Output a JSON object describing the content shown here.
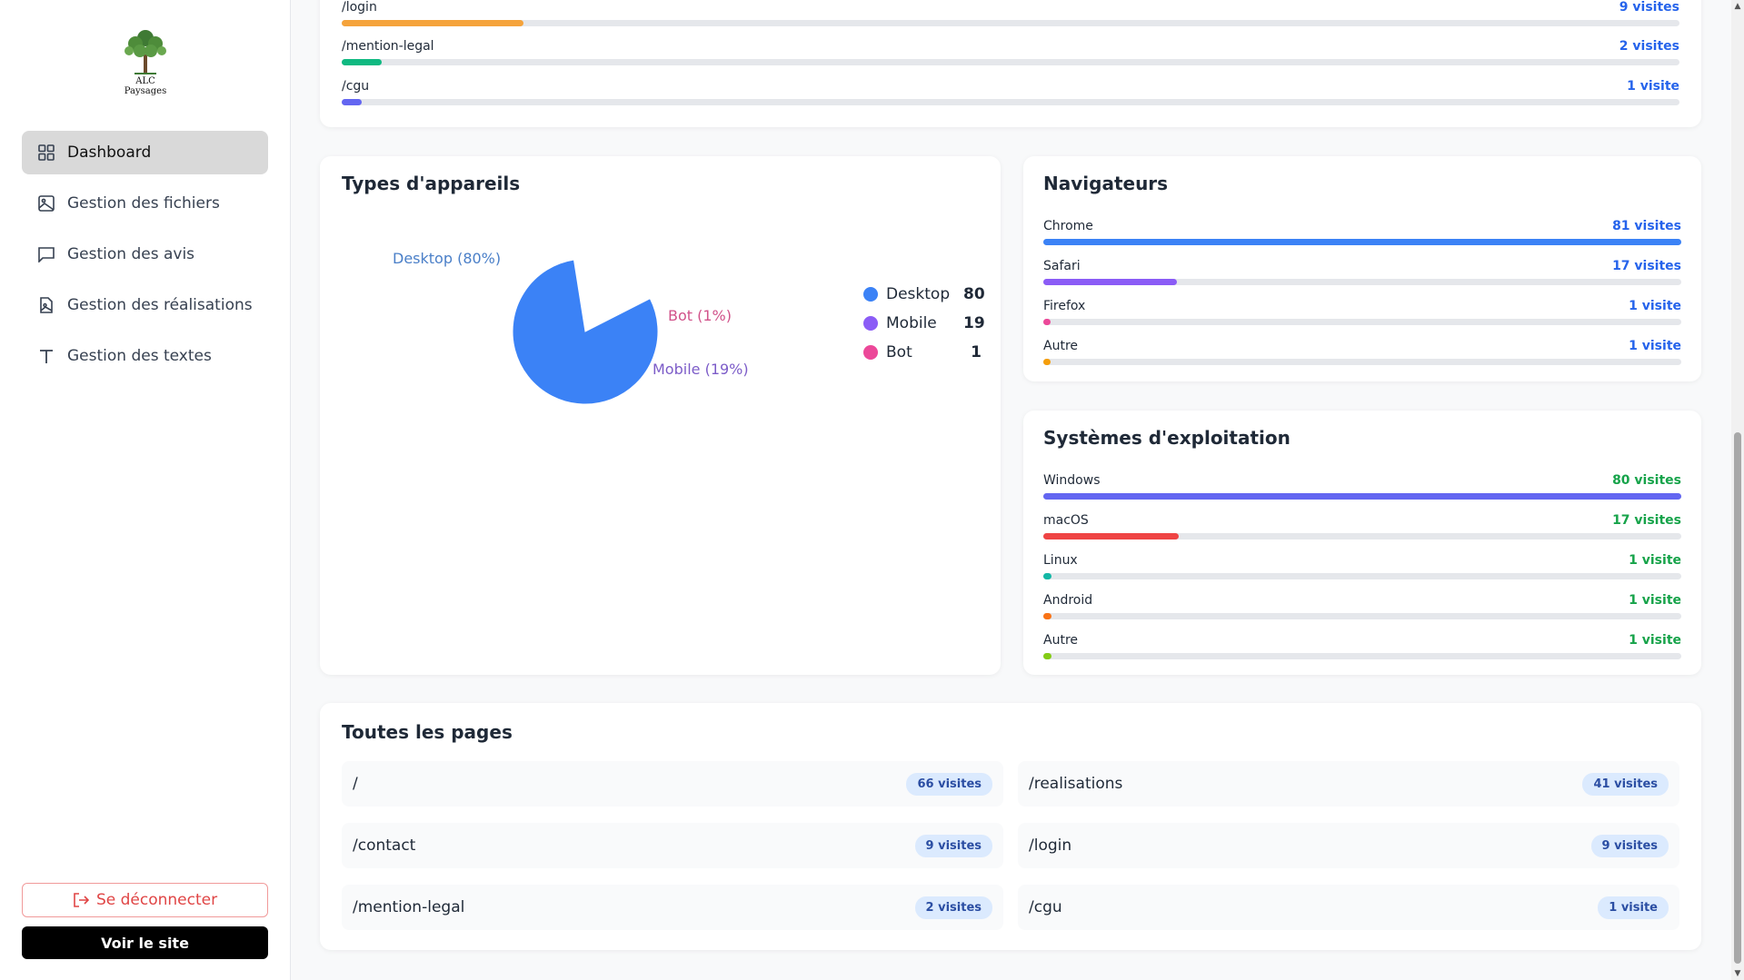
{
  "brand": {
    "name": "ALC Paysages"
  },
  "sidebar": {
    "items": [
      {
        "label": "Dashboard",
        "icon": "grid-icon",
        "active": true
      },
      {
        "label": "Gestion des fichiers",
        "icon": "image-icon"
      },
      {
        "label": "Gestion des avis",
        "icon": "message-icon"
      },
      {
        "label": "Gestion des réalisations",
        "icon": "file-image-icon"
      },
      {
        "label": "Gestion des textes",
        "icon": "type-icon"
      }
    ],
    "logout_label": "Se déconnecter",
    "view_site_label": "Voir le site"
  },
  "top_pages": [
    {
      "path": "/login",
      "count": "9 visites",
      "fraction": 0.136,
      "color": "#f5a33b"
    },
    {
      "path": "/mention-legal",
      "count": "2 visites",
      "fraction": 0.03,
      "color": "#10b981"
    },
    {
      "path": "/cgu",
      "count": "1 visite",
      "fraction": 0.015,
      "color": "#6366f1"
    }
  ],
  "devices": {
    "title": "Types d'appareils",
    "legend": [
      {
        "label": "Desktop",
        "value": "80",
        "color": "#3b82f6"
      },
      {
        "label": "Mobile",
        "value": "19",
        "color": "#8b5cf6"
      },
      {
        "label": "Bot",
        "value": "1",
        "color": "#ec4899"
      }
    ],
    "pie_labels": {
      "desktop": "Desktop (80%)",
      "bot": "Bot (1%)",
      "mobile": "Mobile (19%)"
    }
  },
  "chart_data": {
    "type": "pie",
    "categories": [
      "Desktop",
      "Mobile",
      "Bot"
    ],
    "values": [
      80,
      19,
      1
    ],
    "title": "Types d'appareils",
    "colors": [
      "#3b82f6",
      "#8b5cf6",
      "#ec4899"
    ]
  },
  "browsers": {
    "title": "Navigateurs",
    "items": [
      {
        "label": "Chrome",
        "count": "81 visites",
        "fraction": 1.0,
        "color": "#3b82f6"
      },
      {
        "label": "Safari",
        "count": "17 visites",
        "fraction": 0.21,
        "color": "#8b5cf6"
      },
      {
        "label": "Firefox",
        "count": "1 visite",
        "fraction": 0.012,
        "color": "#ec4899"
      },
      {
        "label": "Autre",
        "count": "1 visite",
        "fraction": 0.012,
        "color": "#f59e0b"
      }
    ]
  },
  "os": {
    "title": "Systèmes d'exploitation",
    "items": [
      {
        "label": "Windows",
        "count": "80 visites",
        "fraction": 1.0,
        "color": "#6366f1"
      },
      {
        "label": "macOS",
        "count": "17 visites",
        "fraction": 0.212,
        "color": "#ef4444"
      },
      {
        "label": "Linux",
        "count": "1 visite",
        "fraction": 0.0125,
        "color": "#14b8a6"
      },
      {
        "label": "Android",
        "count": "1 visite",
        "fraction": 0.0125,
        "color": "#f97316"
      },
      {
        "label": "Autre",
        "count": "1 visite",
        "fraction": 0.0125,
        "color": "#84cc16"
      }
    ]
  },
  "all_pages": {
    "title": "Toutes les pages",
    "items": [
      {
        "path": "/",
        "count": "66 visites"
      },
      {
        "path": "/realisations",
        "count": "41 visites"
      },
      {
        "path": "/contact",
        "count": "9 visites"
      },
      {
        "path": "/login",
        "count": "9 visites"
      },
      {
        "path": "/mention-legal",
        "count": "2 visites"
      },
      {
        "path": "/cgu",
        "count": "1 visite"
      }
    ]
  }
}
